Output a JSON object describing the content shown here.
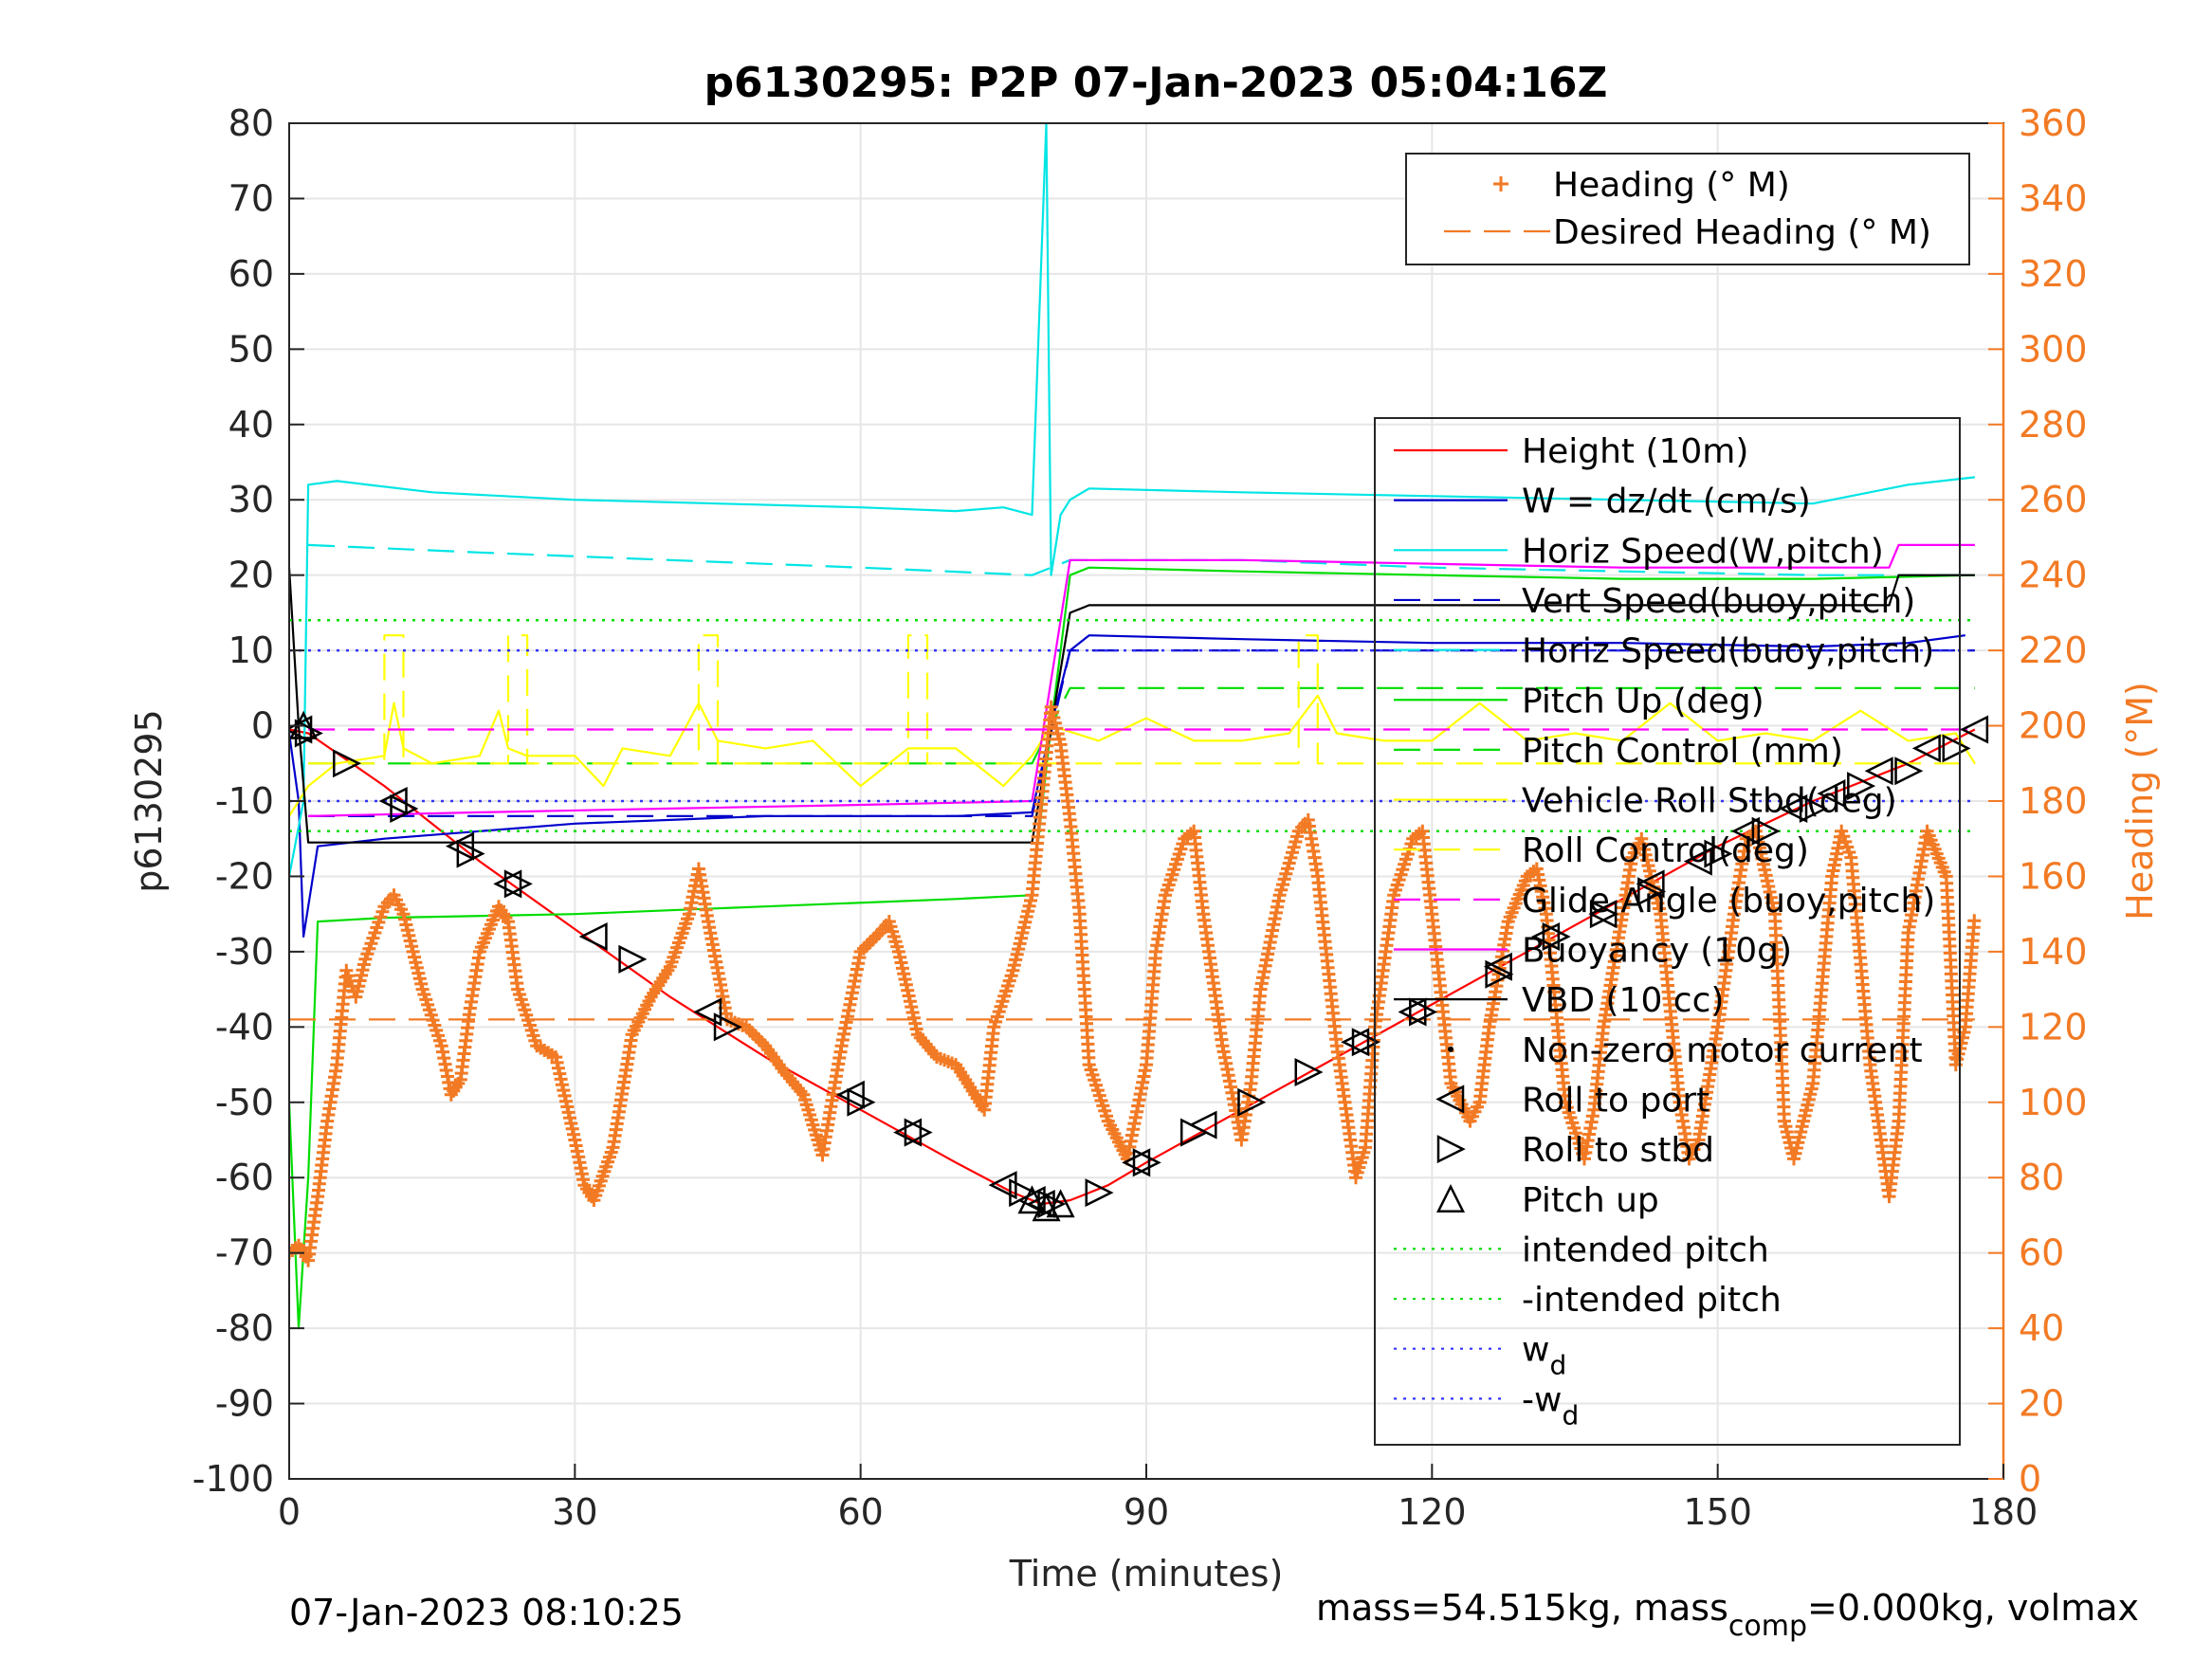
{
  "chart_data": {
    "type": "line",
    "title": "p6130295: P2P 07-Jan-2023 05:04:16Z",
    "xlabel": "Time (minutes)",
    "ylabel_left": "p6130295",
    "ylabel_right": "Heading (°M)",
    "xlim": [
      0,
      180
    ],
    "ylim_left": [
      -100,
      80
    ],
    "ylim_right": [
      0,
      360
    ],
    "x_ticks": [
      "0",
      "30",
      "60",
      "90",
      "120",
      "150",
      "180"
    ],
    "y_ticks_left": [
      "80",
      "70",
      "60",
      "50",
      "40",
      "30",
      "20",
      "10",
      "0",
      "-10",
      "-20",
      "-30",
      "-40",
      "-50",
      "-60",
      "-70",
      "-80",
      "-90",
      "-100"
    ],
    "y_ticks_right": [
      "360",
      "340",
      "320",
      "300",
      "280",
      "260",
      "240",
      "220",
      "200",
      "180",
      "160",
      "140",
      "120",
      "100",
      "80",
      "60",
      "40",
      "20",
      "0"
    ],
    "grid": true,
    "footer_left": "07-Jan-2023 08:10:25",
    "footer_right": "mass=54.515kg, mass",
    "footer_right_sub": "comp",
    "footer_right_tail": "=0.000kg, volmax",
    "colors": {
      "heading": "#f27a24",
      "red": "#ff0000",
      "blue": "#0000cc",
      "cyan": "#00e5e5",
      "green": "#00dd00",
      "yellow": "#ffff00",
      "magenta": "#ff00ff",
      "black": "#000000",
      "wd": "#3333ff"
    },
    "legend_heading": {
      "placement": "top-right",
      "entries": [
        {
          "label": "Heading (° M)",
          "style": "plus",
          "color": "#f27a24"
        },
        {
          "label": "Desired Heading (° M)",
          "style": "dash",
          "color": "#f27a24"
        }
      ]
    },
    "legend_main": {
      "placement": "right",
      "entries": [
        {
          "label": "Height (10m)",
          "style": "solid",
          "color": "#ff0000"
        },
        {
          "label": "W = dz/dt (cm/s)",
          "style": "solid",
          "color": "#0000cc"
        },
        {
          "label": "Horiz Speed(W,pitch)",
          "style": "solid",
          "color": "#00e5e5"
        },
        {
          "label": "Vert Speed(buoy,pitch)",
          "style": "dash",
          "color": "#0000cc"
        },
        {
          "label": "Horiz Speed(buoy,pitch)",
          "style": "dash",
          "color": "#00e5e5"
        },
        {
          "label": "Pitch Up (deg)",
          "style": "solid",
          "color": "#00dd00"
        },
        {
          "label": "Pitch Control (mm)",
          "style": "dash",
          "color": "#00dd00"
        },
        {
          "label": "Vehicle Roll Stbd(deg)",
          "style": "solid",
          "color": "#ffff00"
        },
        {
          "label": "Roll Control(deg)",
          "style": "dash",
          "color": "#ffff00"
        },
        {
          "label": "Glide Angle (buoy,pitch)",
          "style": "dash",
          "color": "#ff00ff"
        },
        {
          "label": "Buoyancy (10g)",
          "style": "solid",
          "color": "#ff00ff"
        },
        {
          "label": "VBD (10 cc)",
          "style": "solid",
          "color": "#000000"
        },
        {
          "label": "Non-zero motor current",
          "style": "dot",
          "color": "#000000"
        },
        {
          "label": "Roll to port",
          "style": "tri-left",
          "color": "#000000"
        },
        {
          "label": "Roll to stbd",
          "style": "tri-right",
          "color": "#000000"
        },
        {
          "label": "Pitch up",
          "style": "tri-up",
          "color": "#000000"
        },
        {
          "label": "intended pitch",
          "style": "dotted",
          "color": "#00dd00"
        },
        {
          "label": "-intended pitch",
          "style": "dotted",
          "color": "#00dd00"
        },
        {
          "label": "w",
          "sub": "d",
          "style": "dotted",
          "color": "#3333ff"
        },
        {
          "label": "-w",
          "sub": "d",
          "style": "dotted",
          "color": "#3333ff"
        }
      ]
    },
    "series": [
      {
        "name": "Height (10m)",
        "axis": "left",
        "color": "#ff0000",
        "style": "solid",
        "x": [
          0,
          2,
          10,
          20,
          30,
          40,
          50,
          60,
          70,
          76,
          79,
          82,
          86,
          90,
          100,
          110,
          120,
          130,
          140,
          150,
          160,
          170,
          177
        ],
        "y": [
          -0.5,
          -1,
          -8,
          -18,
          -27,
          -36,
          -44,
          -51,
          -58,
          -62,
          -63.5,
          -63,
          -61,
          -58,
          -51,
          -44,
          -37,
          -30,
          -23,
          -16,
          -10,
          -5,
          -0.5
        ]
      },
      {
        "name": "W = dz/dt (cm/s)",
        "axis": "left",
        "color": "#0000cc",
        "style": "solid",
        "x": [
          0,
          1,
          1.5,
          3,
          10,
          20,
          30,
          40,
          50,
          60,
          70,
          78,
          80,
          82,
          84,
          100,
          120,
          140,
          160,
          170,
          176
        ],
        "y": [
          -1,
          -10,
          -28,
          -16,
          -15,
          -14,
          -13,
          -12.5,
          -12,
          -12,
          -12,
          -11.5,
          0,
          10,
          12,
          11.5,
          11,
          11,
          10.5,
          11,
          12
        ]
      },
      {
        "name": "Horiz Speed(W,pitch)",
        "axis": "left",
        "color": "#00e5e5",
        "style": "solid",
        "x": [
          0,
          1.5,
          2,
          5,
          15,
          30,
          45,
          60,
          70,
          75,
          78,
          79.5,
          80,
          80.5,
          81,
          82,
          84,
          100,
          120,
          140,
          160,
          170,
          177
        ],
        "y": [
          -20,
          -10,
          32,
          32.5,
          31,
          30,
          29.5,
          29,
          28.5,
          29,
          28,
          80,
          20,
          24,
          28,
          30,
          31.5,
          31,
          30.5,
          30,
          29.5,
          32,
          33
        ]
      },
      {
        "name": "Vert Speed(buoy,pitch)",
        "axis": "left",
        "color": "#0000cc",
        "style": "dash",
        "x": [
          2,
          78,
          82,
          177
        ],
        "y": [
          -12,
          -12,
          10,
          10
        ]
      },
      {
        "name": "Horiz Speed(buoy,pitch)",
        "axis": "left",
        "color": "#00e5e5",
        "style": "dash",
        "x": [
          2,
          20,
          40,
          60,
          78,
          82,
          100,
          120,
          140,
          160,
          177
        ],
        "y": [
          24,
          23,
          22,
          21,
          20,
          22,
          22,
          21,
          20.5,
          20,
          20
        ]
      },
      {
        "name": "Pitch Up (deg)",
        "axis": "left",
        "color": "#00dd00",
        "style": "solid",
        "x": [
          0,
          1,
          2,
          3,
          10,
          30,
          50,
          70,
          78,
          80,
          82,
          84,
          100,
          120,
          140,
          160,
          177
        ],
        "y": [
          -50,
          -80,
          -60,
          -26,
          -25.5,
          -25,
          -24,
          -23,
          -22.5,
          0,
          20,
          21,
          20.5,
          20,
          19.5,
          19.5,
          20
        ]
      },
      {
        "name": "Pitch Control (mm)",
        "axis": "left",
        "color": "#00dd00",
        "style": "dash",
        "x": [
          2,
          78,
          82,
          177
        ],
        "y": [
          -5,
          -5,
          5,
          5
        ]
      },
      {
        "name": "Vehicle Roll Stbd(deg)",
        "axis": "left",
        "color": "#ffff00",
        "style": "solid",
        "x": [
          0,
          2,
          5,
          10,
          11,
          12,
          15,
          20,
          22,
          23,
          25,
          30,
          33,
          35,
          40,
          43,
          45,
          50,
          55,
          60,
          65,
          70,
          75,
          78,
          80,
          85,
          90,
          95,
          100,
          105,
          108,
          110,
          115,
          120,
          125,
          130,
          135,
          140,
          145,
          150,
          155,
          160,
          165,
          170,
          175,
          177
        ],
        "y": [
          -12,
          -8,
          -5,
          -4,
          3,
          -3,
          -5,
          -4,
          2,
          -3,
          -4,
          -4,
          -8,
          -3,
          -4,
          3,
          -2,
          -3,
          -2,
          -8,
          -3,
          -3,
          -8,
          -4,
          0,
          -2,
          1,
          -2,
          -2,
          -1,
          4,
          -1,
          -2,
          -2,
          3,
          -2,
          -1,
          -2,
          3,
          -2,
          -1,
          -2,
          2,
          -2,
          -1,
          -5
        ]
      },
      {
        "name": "Roll Control(deg)",
        "axis": "left",
        "color": "#ffff00",
        "style": "dash",
        "x": [
          2,
          10,
          10,
          12,
          12,
          23,
          23,
          25,
          25,
          43,
          43,
          45,
          45,
          65,
          65,
          67,
          67,
          106,
          106,
          108,
          108,
          177
        ],
        "y": [
          -5,
          -5,
          12,
          12,
          -5,
          -5,
          12,
          12,
          -5,
          -5,
          12,
          12,
          -5,
          -5,
          12,
          12,
          -5,
          -5,
          12,
          12,
          -5,
          -5
        ]
      },
      {
        "name": "Glide Angle (buoy,pitch)",
        "axis": "left",
        "color": "#ff00ff",
        "style": "dash",
        "x": [
          2,
          177
        ],
        "y": [
          -0.5,
          -0.5
        ]
      },
      {
        "name": "Buoyancy (10g)",
        "axis": "left",
        "color": "#ff00ff",
        "style": "solid",
        "x": [
          2,
          20,
          40,
          60,
          78,
          82,
          100,
          120,
          140,
          160,
          168,
          169,
          177
        ],
        "y": [
          -12,
          -11.5,
          -11,
          -10.5,
          -10,
          22,
          22,
          21.5,
          21,
          21,
          21,
          24,
          24
        ]
      },
      {
        "name": "VBD (10 cc)",
        "axis": "left",
        "color": "#000000",
        "style": "solid",
        "x": [
          0,
          1,
          2,
          30,
          60,
          78,
          82,
          84,
          120,
          160,
          168,
          169,
          177
        ],
        "y": [
          21,
          0,
          -15.5,
          -15.5,
          -15.5,
          -15.5,
          15,
          16,
          16,
          16,
          16,
          20,
          20
        ]
      },
      {
        "name": "Desired Heading (° M)",
        "axis": "right",
        "color": "#f27a24",
        "style": "dash",
        "x": [
          0,
          177
        ],
        "y": [
          122,
          122
        ]
      },
      {
        "name": "intended pitch",
        "axis": "left",
        "color": "#00dd00",
        "style": "dotted",
        "x": [
          0,
          177
        ],
        "y": [
          14,
          14
        ]
      },
      {
        "name": "-intended pitch",
        "axis": "left",
        "color": "#00dd00",
        "style": "dotted",
        "x": [
          0,
          177
        ],
        "y": [
          -14,
          -14
        ]
      },
      {
        "name": "w",
        "axis": "left",
        "color": "#3333ff",
        "style": "dotted",
        "x": [
          0,
          177
        ],
        "y": [
          10,
          10
        ]
      },
      {
        "name": "-w",
        "axis": "left",
        "color": "#3333ff",
        "style": "dotted",
        "x": [
          0,
          177
        ],
        "y": [
          -10,
          -10
        ]
      }
    ],
    "heading_points": {
      "axis": "right",
      "x": [
        0,
        1,
        2,
        3,
        4,
        5,
        6,
        7,
        8,
        9,
        10,
        11,
        12,
        14,
        16,
        17,
        18,
        19,
        20,
        22,
        23,
        24,
        26,
        28,
        30,
        31,
        32,
        34,
        36,
        38,
        40,
        42,
        43,
        44,
        46,
        48,
        50,
        52,
        54,
        56,
        58,
        60,
        62,
        63,
        64,
        66,
        68,
        70,
        72,
        73,
        74,
        76,
        78,
        80,
        81,
        82,
        83,
        84,
        86,
        88,
        90,
        91,
        92,
        94,
        95,
        96,
        98,
        100,
        101,
        102,
        104,
        106,
        107,
        108,
        110,
        112,
        113,
        114,
        116,
        118,
        119,
        120,
        122,
        124,
        125,
        126,
        128,
        130,
        131,
        132,
        134,
        136,
        137,
        138,
        140,
        141,
        142,
        144,
        146,
        147,
        148,
        150,
        152,
        153,
        154,
        156,
        157,
        158,
        160,
        162,
        163,
        164,
        166,
        168,
        169,
        170,
        172,
        174,
        175,
        176,
        177
      ],
      "y": [
        60,
        62,
        58,
        75,
        95,
        110,
        135,
        128,
        138,
        145,
        152,
        155,
        150,
        130,
        115,
        102,
        106,
        125,
        140,
        152,
        148,
        130,
        115,
        112,
        90,
        78,
        74,
        88,
        118,
        128,
        136,
        150,
        162,
        148,
        122,
        120,
        115,
        108,
        102,
        86,
        115,
        140,
        145,
        148,
        140,
        118,
        112,
        110,
        102,
        98,
        120,
        135,
        155,
        205,
        195,
        175,
        150,
        110,
        95,
        85,
        110,
        140,
        155,
        170,
        172,
        150,
        115,
        90,
        105,
        130,
        155,
        172,
        175,
        160,
        115,
        80,
        88,
        120,
        155,
        170,
        172,
        150,
        105,
        95,
        100,
        120,
        148,
        160,
        162,
        150,
        100,
        85,
        98,
        120,
        150,
        165,
        170,
        150,
        100,
        85,
        90,
        120,
        155,
        170,
        172,
        150,
        95,
        85,
        105,
        160,
        172,
        165,
        110,
        75,
        95,
        145,
        172,
        160,
        110,
        120,
        150
      ]
    },
    "markers": {
      "roll_to_port": {
        "x": [
          1,
          11,
          18,
          23,
          32,
          44,
          59,
          65,
          75,
          78,
          79,
          89,
          96,
          112,
          118,
          127,
          132,
          138,
          143,
          148,
          153,
          158,
          162,
          167,
          172,
          177
        ],
        "y": [
          -0.5,
          -10,
          -16,
          -21,
          -28,
          -38,
          -49,
          -54,
          -61,
          -63,
          -63.5,
          -58,
          -53,
          -42,
          -38,
          -32,
          -28,
          -25,
          -21,
          -18,
          -14,
          -11,
          -9,
          -6,
          -3,
          -0.5
        ]
      },
      "roll_to_stbd": {
        "x": [
          2,
          6,
          12,
          19,
          24,
          36,
          46,
          60,
          66,
          77,
          80,
          85,
          90,
          95,
          101,
          107,
          113,
          119,
          127,
          133,
          138,
          143,
          150,
          155,
          160,
          165,
          170,
          175
        ],
        "y": [
          -1,
          -5,
          -11,
          -17,
          -21,
          -31,
          -40,
          -50,
          -54,
          -62,
          -63.5,
          -62,
          -58,
          -54,
          -50,
          -46,
          -42,
          -38,
          -33,
          -28,
          -25,
          -22,
          -17,
          -14,
          -11,
          -8,
          -6,
          -3
        ]
      },
      "pitch_up": {
        "x": [
          1.5,
          78,
          79.5,
          81
        ],
        "y": [
          0,
          -63,
          -64,
          -63.5
        ]
      }
    }
  }
}
